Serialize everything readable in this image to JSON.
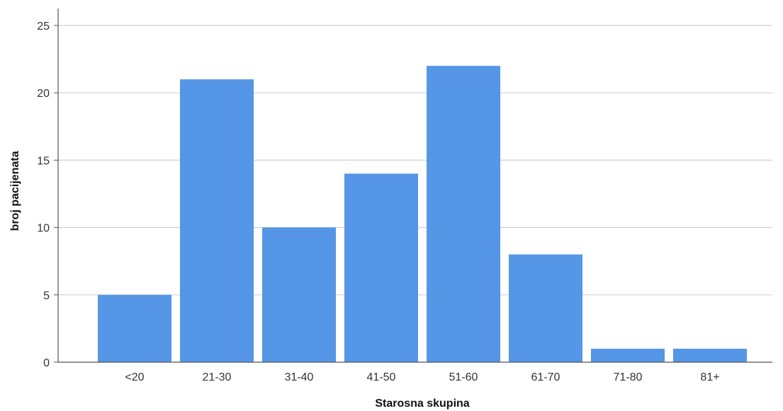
{
  "chart_data": {
    "type": "bar",
    "title": "",
    "xlabel": "Starosna skupina",
    "ylabel": "broj pacijenata",
    "categories": [
      "<20",
      "21-30",
      "31-40",
      "41-50",
      "51-60",
      "61-70",
      "71-80",
      "81+"
    ],
    "values": [
      5,
      21,
      10,
      14,
      22,
      8,
      1,
      1
    ],
    "ylim": [
      0,
      25
    ],
    "yticks": [
      0,
      5,
      10,
      15,
      20,
      25
    ],
    "grid": "horizontal",
    "legend": "none",
    "bar_color": "#5596E6"
  }
}
